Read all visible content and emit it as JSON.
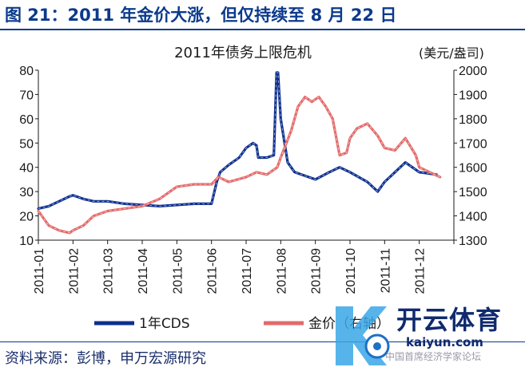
{
  "figure_title": "图 21：2011 年金价大涨，但仅持续至 8 月 22 日",
  "source_text": "资料来源：彭博，申万宏源研究",
  "watermark": {
    "brand": "开云体育",
    "url": "kaiyun.com",
    "caption": "中国首席经济学家论坛"
  },
  "colors": {
    "title_blue": "#0b3a8c",
    "cds_series": "#0d2f8f",
    "gold_series": "#e36a6a"
  },
  "chart_data": {
    "type": "line",
    "title": "2011年债务上限危机",
    "right_axis_unit": "(美元/盎司)",
    "x_categories": [
      "2011-01",
      "2011-02",
      "2011-03",
      "2011-04",
      "2011-05",
      "2011-06",
      "2011-07",
      "2011-08",
      "2011-09",
      "2011-10",
      "2011-11",
      "2011-12"
    ],
    "y_left": {
      "min": 10,
      "max": 80,
      "ticks": [
        "10",
        "20",
        "30",
        "40",
        "50",
        "60",
        "70",
        "80"
      ]
    },
    "y_right": {
      "min": 1300,
      "max": 2000,
      "ticks": [
        "1300",
        "1400",
        "1500",
        "1600",
        "1700",
        "1800",
        "1900",
        "2000"
      ]
    },
    "legend_position": "bottom",
    "series": [
      {
        "name": "1年CDS",
        "axis": "left",
        "color": "#0d2f8f",
        "x": [
          0.0,
          0.3,
          0.6,
          0.9,
          1.0,
          1.3,
          1.6,
          2.0,
          2.5,
          3.0,
          3.5,
          4.0,
          4.5,
          5.0,
          5.15,
          5.25,
          5.5,
          5.8,
          6.0,
          6.2,
          6.3,
          6.35,
          6.6,
          6.8,
          6.88,
          6.92,
          7.0,
          7.2,
          7.4,
          7.6,
          8.0,
          8.4,
          8.7,
          9.0,
          9.5,
          9.8,
          10.0,
          10.3,
          10.6,
          11.0,
          11.5
        ],
        "y": [
          23,
          24,
          26,
          28,
          28.5,
          27,
          26,
          26,
          25,
          24.5,
          24,
          24.5,
          25,
          25,
          34,
          38,
          41,
          44,
          48,
          50,
          49,
          44,
          44,
          45,
          79,
          79,
          60,
          42,
          38,
          37,
          35,
          38,
          40,
          38,
          34,
          30,
          34,
          38,
          42,
          38,
          37
        ]
      },
      {
        "name": "金价（右轴）",
        "axis": "right",
        "color": "#e36a6a",
        "x": [
          0.0,
          0.3,
          0.6,
          0.9,
          1.0,
          1.3,
          1.6,
          2.0,
          2.5,
          3.0,
          3.5,
          4.0,
          4.5,
          5.0,
          5.2,
          5.5,
          6.0,
          6.3,
          6.6,
          6.9,
          7.0,
          7.3,
          7.5,
          7.7,
          7.9,
          8.1,
          8.3,
          8.5,
          8.7,
          8.9,
          9.0,
          9.2,
          9.5,
          9.8,
          10.0,
          10.3,
          10.6,
          10.9,
          11.0,
          11.3,
          11.6
        ],
        "y": [
          1420,
          1360,
          1340,
          1330,
          1340,
          1360,
          1400,
          1420,
          1430,
          1440,
          1470,
          1520,
          1530,
          1530,
          1560,
          1540,
          1560,
          1580,
          1570,
          1600,
          1640,
          1750,
          1850,
          1890,
          1870,
          1890,
          1850,
          1800,
          1650,
          1660,
          1720,
          1760,
          1780,
          1730,
          1680,
          1670,
          1720,
          1650,
          1600,
          1580,
          1560
        ]
      }
    ]
  }
}
